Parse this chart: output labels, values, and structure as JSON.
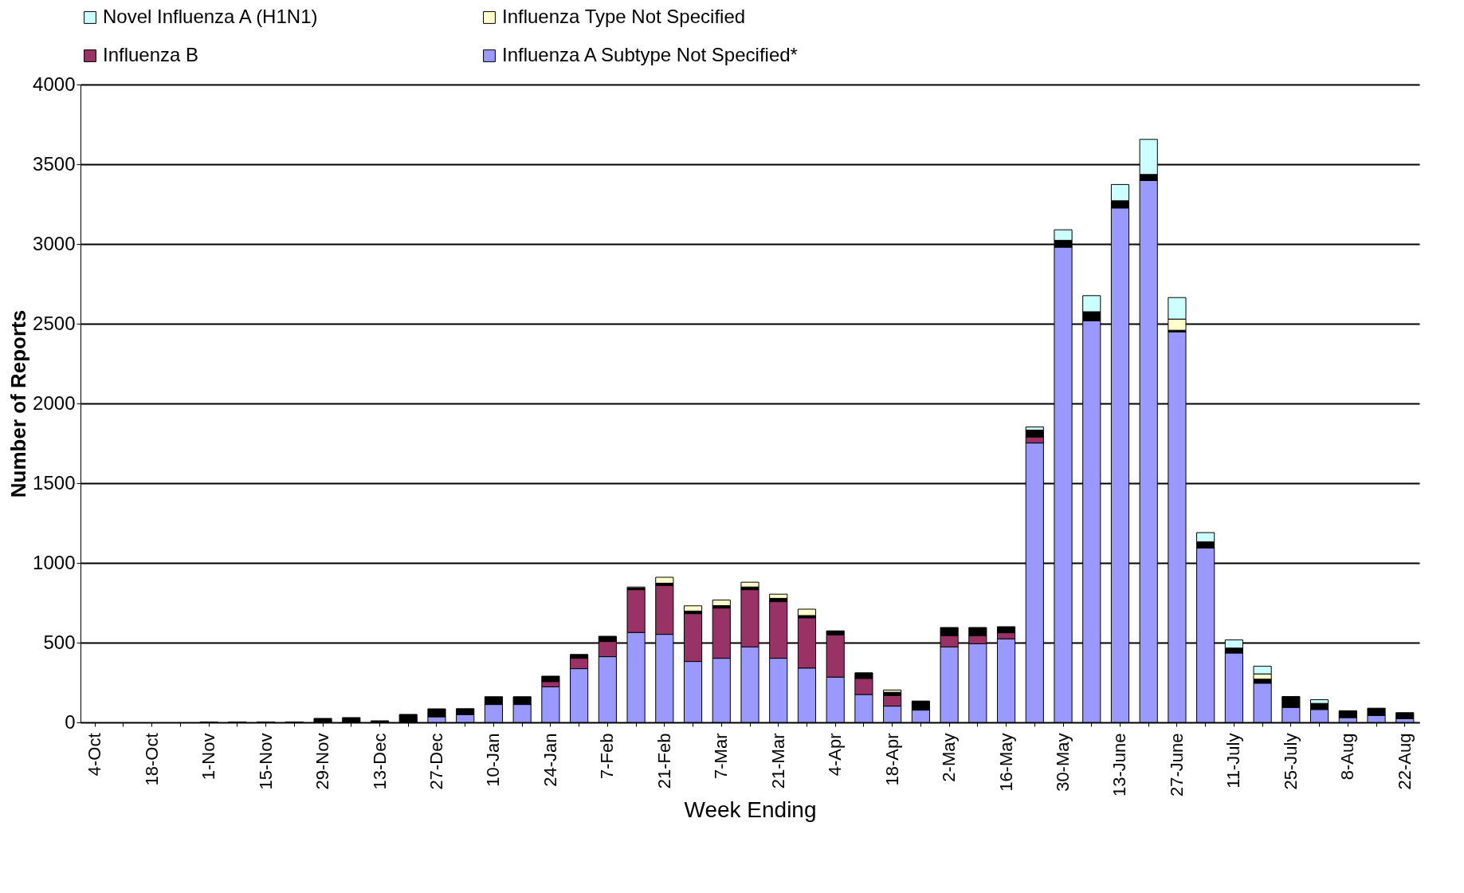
{
  "chart_data": {
    "type": "bar",
    "stacked": true,
    "xlabel": "Week Ending",
    "ylabel": "Number of Reports",
    "categories": [
      "4-Oct",
      null,
      "18-Oct",
      null,
      "1-Nov",
      null,
      "15-Nov",
      null,
      "29-Nov",
      null,
      "13-Dec",
      null,
      "27-Dec",
      null,
      "10-Jan",
      null,
      "24-Jan",
      null,
      "7-Feb",
      null,
      "21-Feb",
      null,
      "7-Mar",
      null,
      "21-Mar",
      null,
      "4-Apr",
      null,
      "18-Apr",
      null,
      "2-May",
      null,
      "16-May",
      null,
      "30-May",
      null,
      "13-June",
      null,
      "27-June",
      null,
      "11-July",
      null,
      "25-July",
      null,
      "8-Aug",
      null,
      "22-Aug"
    ],
    "series": [
      {
        "name": "Influenza A Subtype Not Specified*",
        "color": "#9999ff",
        "values": [
          null,
          null,
          null,
          null,
          null,
          null,
          null,
          null,
          null,
          null,
          null,
          null,
          35,
          49,
          112,
          112,
          223,
          337,
          412,
          564,
          552,
          382,
          402,
          473,
          402,
          341,
          284,
          175,
          102,
          77,
          473,
          493,
          524,
          1752,
          2980,
          2519,
          3226,
          3398,
          2449,
          1094,
          435,
          246,
          94,
          81,
          30,
          43,
          23
        ]
      },
      {
        "name": "Influenza B",
        "color": "#993366",
        "values": [
          null,
          null,
          null,
          null,
          null,
          null,
          null,
          null,
          null,
          null,
          null,
          null,
          null,
          null,
          null,
          null,
          33,
          65,
          95,
          268,
          307,
          300,
          315,
          359,
          355,
          315,
          264,
          101,
          66,
          null,
          71,
          51,
          38,
          38,
          null,
          null,
          null,
          null,
          null,
          null,
          null,
          null,
          null,
          null,
          null,
          null,
          null
        ]
      },
      {
        "color": "#000000",
        "values": [
          null,
          null,
          null,
          null,
          3,
          3,
          3,
          3,
          25,
          30,
          10,
          50,
          50,
          37,
          49,
          49,
          34,
          24,
          33,
          10,
          14,
          16,
          15,
          17,
          21,
          14,
          26,
          35,
          21,
          57,
          51,
          51,
          38,
          43,
          43,
          56,
          45,
          38,
          10,
          38,
          31,
          25,
          68,
          38,
          43,
          46,
          38
        ]
      },
      {
        "name": "Influenza Type Not Specified",
        "color": "#ffffcc",
        "values": [
          null,
          null,
          null,
          null,
          null,
          null,
          null,
          null,
          null,
          null,
          null,
          null,
          null,
          null,
          null,
          null,
          null,
          null,
          null,
          7,
          37,
          33,
          35,
          30,
          26,
          40,
          null,
          null,
          14,
          null,
          null,
          null,
          null,
          null,
          null,
          null,
          null,
          null,
          70,
          null,
          null,
          33,
          null,
          null,
          null,
          null,
          null
        ]
      },
      {
        "name": "Novel Influenza A (H1N1)",
        "color": "#ccffff",
        "values": [
          null,
          null,
          null,
          null,
          null,
          null,
          null,
          null,
          null,
          null,
          null,
          null,
          null,
          null,
          null,
          null,
          null,
          null,
          null,
          null,
          null,
          null,
          null,
          null,
          null,
          null,
          null,
          null,
          null,
          null,
          null,
          null,
          null,
          20,
          66,
          101,
          102,
          220,
          135,
          58,
          51,
          48,
          null,
          23,
          null,
          null,
          null
        ]
      }
    ],
    "ylim": [
      0,
      4000
    ],
    "yticks": [
      0,
      500,
      1000,
      1500,
      2000,
      2500,
      3000,
      3500,
      4000
    ],
    "grid": "y",
    "legend": "top"
  }
}
